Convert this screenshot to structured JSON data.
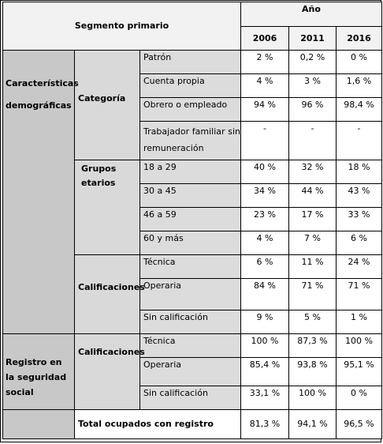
{
  "header": {
    "segment_label": "Segmento primario",
    "year_label": "Año",
    "years": [
      "2006",
      "2011",
      "2016"
    ]
  },
  "sections": {
    "demographics": {
      "label": "Características demográficas",
      "categoria": {
        "label": "Categoría",
        "rows": [
          {
            "label": "Patrón",
            "v2006": "2 %",
            "v2011": "0,2 %",
            "v2016": "0 %"
          },
          {
            "label": "Cuenta propia",
            "v2006": "4 %",
            "v2011": "3 %",
            "v2016": "1,6 %"
          },
          {
            "label": "Obrero o empleado",
            "v2006": "94 %",
            "v2011": "96 %",
            "v2016": "98,4 %"
          },
          {
            "label": "Trabajador familiar sin remuneración",
            "v2006": "-",
            "v2011": "-",
            "v2016": "-"
          }
        ]
      },
      "grupos": {
        "label": "Grupos etarios",
        "rows": [
          {
            "label": "18 a 29",
            "v2006": "40 %",
            "v2011": "32 %",
            "v2016": "18 %"
          },
          {
            "label": "30 a 45",
            "v2006": "34 %",
            "v2011": "44 %",
            "v2016": "43 %"
          },
          {
            "label": "46 a 59",
            "v2006": "23 %",
            "v2011": "17 %",
            "v2016": "33 %"
          },
          {
            "label": "60 y más",
            "v2006": "4 %",
            "v2011": "7 %",
            "v2016": "6 %"
          }
        ]
      },
      "calificaciones": {
        "label": "Calificaciones",
        "rows": [
          {
            "label": "Técnica",
            "v2006": "6 %",
            "v2011": "11 %",
            "v2016": "24 %"
          },
          {
            "label": "Operaria",
            "v2006": "84 %",
            "v2011": "71 %",
            "v2016": "71 %"
          },
          {
            "label": "Sin calificación",
            "v2006": "9 %",
            "v2011": "5 %",
            "v2016": "1 %"
          }
        ]
      }
    },
    "registro": {
      "label": "Registro en la seguridad social",
      "calificaciones": {
        "label": "Calificaciones",
        "rows": [
          {
            "label": "Técnica",
            "v2006": "100 %",
            "v2011": "87,3 %",
            "v2016": "100 %"
          },
          {
            "label": "Operaria",
            "v2006": "85,4 %",
            "v2011": "93,8 %",
            "v2016": "95,1 %"
          },
          {
            "label": "Sin calificación",
            "v2006": "33,1 %",
            "v2011": "100 %",
            "v2016": "0 %"
          }
        ]
      },
      "total": {
        "label": "Total ocupados con registro",
        "v2006": "81,3 %",
        "v2011": "94,1 %",
        "v2016": "96,5 %"
      }
    }
  }
}
